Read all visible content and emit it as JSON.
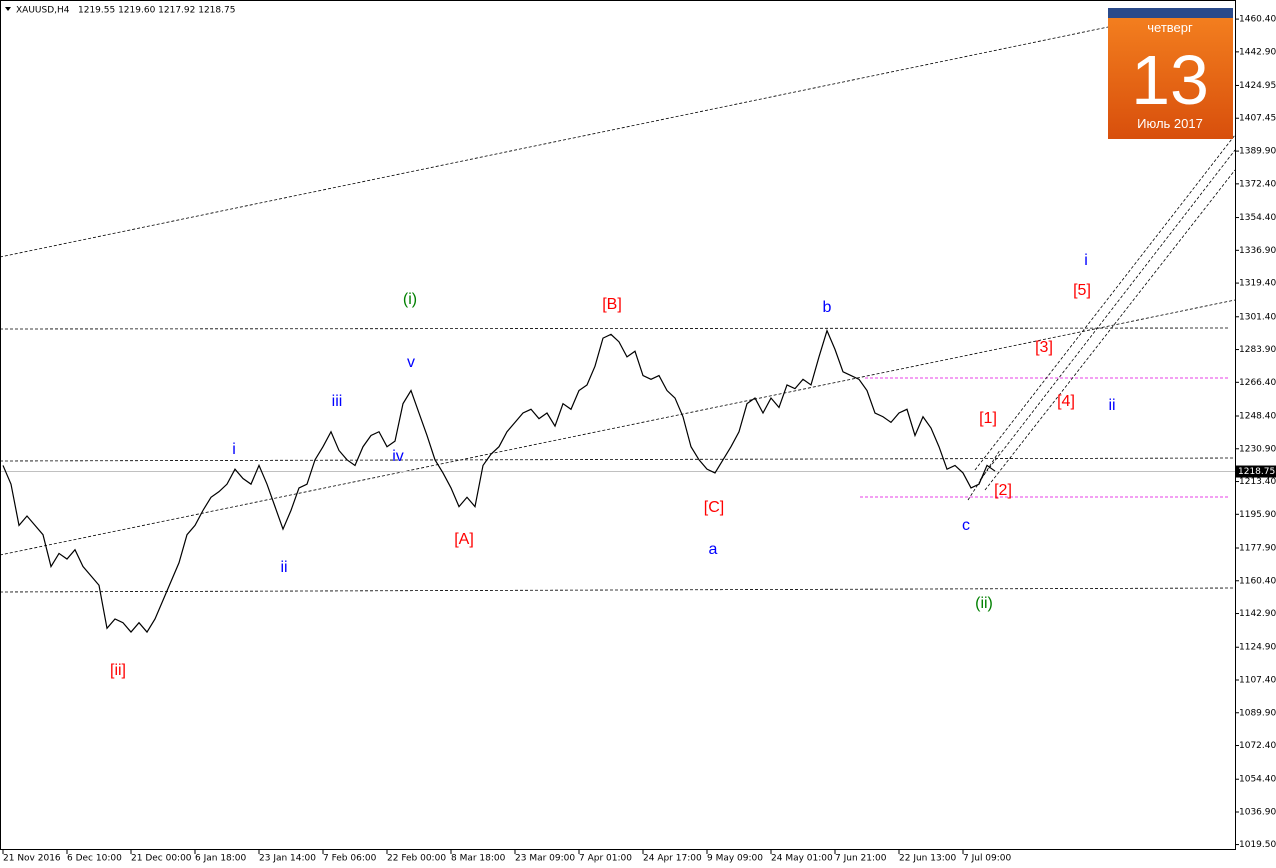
{
  "chart_data": {
    "type": "line",
    "title": "XAUUSD,H4",
    "ohlc_header": "1219.55 1219.60 1217.92 1218.75",
    "calendar": {
      "weekday": "четверг",
      "day": "13",
      "month": "Июль 2017"
    },
    "categories": [
      "21 Nov 2016",
      null,
      null,
      null,
      null,
      null,
      null,
      null,
      "6 Dec 10:00",
      null,
      null,
      null,
      null,
      null,
      null,
      null,
      "21 Dec 00:00",
      null,
      null,
      null,
      null,
      null,
      null,
      null,
      "6 Jan 18:00",
      null,
      null,
      null,
      null,
      null,
      null,
      null,
      "23 Jan 14:00",
      null,
      null,
      null,
      null,
      null,
      null,
      null,
      "7 Feb 06:00",
      null,
      null,
      null,
      null,
      null,
      null,
      null,
      "22 Feb 00:00",
      null,
      null,
      null,
      null,
      null,
      null,
      null,
      "8 Mar 18:00",
      null,
      null,
      null,
      null,
      null,
      null,
      null,
      "23 Mar 09:00",
      null,
      null,
      null,
      null,
      null,
      null,
      null,
      "7 Apr 01:00",
      null,
      null,
      null,
      null,
      null,
      null,
      null,
      "24 Apr 17:00",
      null,
      null,
      null,
      null,
      null,
      null,
      null,
      "9 May 09:00",
      null,
      null,
      null,
      null,
      null,
      null,
      null,
      "24 May 01:00",
      null,
      null,
      null,
      null,
      null,
      null,
      null,
      "7 Jun 21:00",
      null,
      null,
      null,
      null,
      null,
      null,
      null,
      "22 Jun 13:00",
      null,
      null,
      null,
      null,
      null,
      null,
      null,
      "7 Jul 09:00",
      null,
      null,
      null,
      null
    ],
    "series": [
      {
        "name": "XAUUSD",
        "color": "#000000",
        "values": [
          1222,
          1212,
          1190,
          1195,
          1190,
          1185,
          1168,
          1175,
          1172,
          1177,
          1168,
          1163,
          1158,
          1135,
          1140,
          1138,
          1133,
          1138,
          1133,
          1140,
          1150,
          1160,
          1170,
          1185,
          1190,
          1198,
          1205,
          1208,
          1212,
          1220,
          1215,
          1212,
          1222,
          1212,
          1200,
          1188,
          1198,
          1210,
          1212,
          1225,
          1232,
          1240,
          1230,
          1225,
          1222,
          1232,
          1238,
          1240,
          1232,
          1235,
          1255,
          1262,
          1250,
          1238,
          1225,
          1218,
          1210,
          1200,
          1205,
          1200,
          1222,
          1228,
          1232,
          1240,
          1245,
          1250,
          1252,
          1247,
          1250,
          1243,
          1255,
          1252,
          1262,
          1265,
          1275,
          1290,
          1292,
          1288,
          1280,
          1283,
          1270,
          1268,
          1270,
          1262,
          1258,
          1248,
          1232,
          1225,
          1220,
          1218,
          1225,
          1232,
          1240,
          1255,
          1258,
          1250,
          1258,
          1253,
          1265,
          1263,
          1268,
          1265,
          1280,
          1294,
          1284,
          1272,
          1270,
          1268,
          1262,
          1250,
          1248,
          1245,
          1250,
          1252,
          1238,
          1248,
          1242,
          1232,
          1220,
          1222,
          1218,
          1210,
          1212,
          1222,
          1219
        ]
      }
    ],
    "current_price": 1218.75,
    "ylim": [
      1016.6,
      1470.6
    ],
    "yticks": [
      {
        "value": 1460.4,
        "label": "1460.40"
      },
      {
        "value": 1442.9,
        "label": "1442.90"
      },
      {
        "value": 1424.95,
        "label": "1424.95"
      },
      {
        "value": 1407.45,
        "label": "1407.45"
      },
      {
        "value": 1389.9,
        "label": "1389.90"
      },
      {
        "value": 1372.4,
        "label": "1372.40"
      },
      {
        "value": 1354.4,
        "label": "1354.40"
      },
      {
        "value": 1336.9,
        "label": "1336.90"
      },
      {
        "value": 1319.4,
        "label": "1319.40"
      },
      {
        "value": 1301.4,
        "label": "1301.40"
      },
      {
        "value": 1283.9,
        "label": "1283.90"
      },
      {
        "value": 1266.4,
        "label": "1266.40"
      },
      {
        "value": 1248.4,
        "label": "1248.40"
      },
      {
        "value": 1230.9,
        "label": "1230.90"
      },
      {
        "value": 1213.4,
        "label": "1213.40"
      },
      {
        "value": 1195.9,
        "label": "1195.90"
      },
      {
        "value": 1177.9,
        "label": "1177.90"
      },
      {
        "value": 1160.4,
        "label": "1160.40"
      },
      {
        "value": 1142.9,
        "label": "1142.90"
      },
      {
        "value": 1124.9,
        "label": "1124.90"
      },
      {
        "value": 1107.4,
        "label": "1107.40"
      },
      {
        "value": 1089.9,
        "label": "1089.90"
      },
      {
        "value": 1072.4,
        "label": "1072.40"
      },
      {
        "value": 1054.4,
        "label": "1054.40"
      },
      {
        "value": 1036.9,
        "label": "1036.90"
      },
      {
        "value": 1019.5,
        "label": "1019.50"
      }
    ],
    "annotations": [
      {
        "text": "(i)",
        "color": "#008000"
      },
      {
        "text": "v",
        "color": "#0000ff"
      },
      {
        "text": "iii",
        "color": "#0000ff"
      },
      {
        "text": "i",
        "color": "#0000ff"
      },
      {
        "text": "iv",
        "color": "#0000ff"
      },
      {
        "text": "ii",
        "color": "#0000ff"
      },
      {
        "text": "[ii]",
        "color": "#ff0000"
      },
      {
        "text": "[A]",
        "color": "#ff0000"
      },
      {
        "text": "[B]",
        "color": "#ff0000"
      },
      {
        "text": "[C]",
        "color": "#ff0000"
      },
      {
        "text": "a",
        "color": "#0000ff"
      },
      {
        "text": "b",
        "color": "#0000ff"
      },
      {
        "text": "c",
        "color": "#0000ff"
      },
      {
        "text": "(ii)",
        "color": "#008000"
      },
      {
        "text": "[1]",
        "color": "#ff0000"
      },
      {
        "text": "[2]",
        "color": "#ff0000"
      },
      {
        "text": "[3]",
        "color": "#ff0000"
      },
      {
        "text": "[4]",
        "color": "#ff0000"
      },
      {
        "text": "[5]",
        "color": "#ff0000"
      },
      {
        "text": "i",
        "color": "#0000ff"
      },
      {
        "text": "ii",
        "color": "#0000ff"
      }
    ]
  }
}
